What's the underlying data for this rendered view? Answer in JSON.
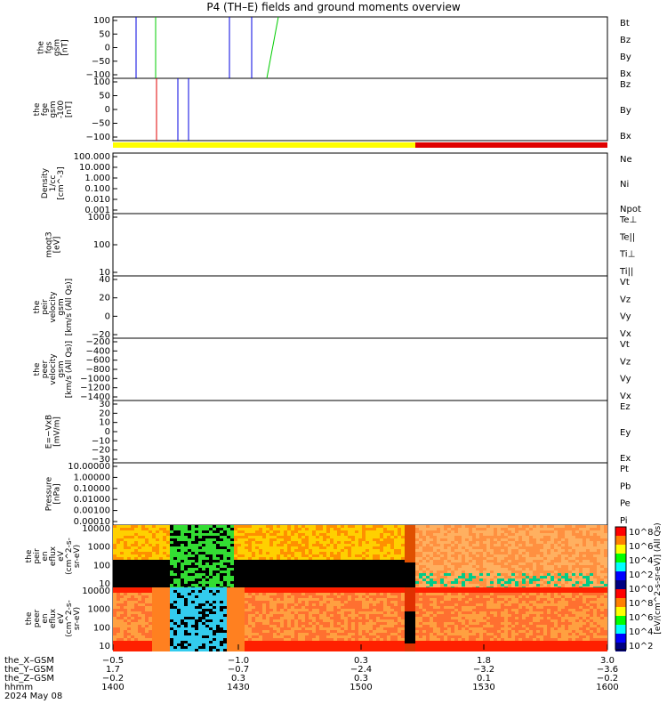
{
  "title": "P4 (TH–E) fields and ground moments overview",
  "colors": {
    "black": "#000000",
    "red": "#e00000",
    "green": "#00cc00",
    "blue": "#0000e0",
    "yellow": "#ffff00"
  },
  "chart_data": [
    {
      "id": "fgs",
      "type": "line",
      "ylabel": [
        "the",
        "fgs",
        "gsm",
        "[nT]"
      ],
      "yticks": [
        "100",
        "50",
        "0",
        "−50",
        "−100"
      ],
      "ylim": [
        -100,
        100
      ],
      "legend": [
        "Bt",
        "Bz",
        "By",
        "Bx"
      ],
      "legend_colors": [
        "#000000",
        "#e00000",
        "#00cc00",
        "#0000e0"
      ]
    },
    {
      "id": "fge",
      "type": "line",
      "ylabel": [
        "the",
        "fge",
        "gsm",
        "-100",
        "[nT]"
      ],
      "yticks": [
        "100",
        "50",
        "0",
        "−50",
        "−100"
      ],
      "ylim": [
        -120,
        120
      ],
      "legend": [
        "Bz",
        "By",
        "Bx"
      ],
      "legend_colors": [
        "#e00000",
        "#00cc00",
        "#0000e0"
      ]
    },
    {
      "id": "density",
      "type": "line",
      "ylabel": [
        "Density",
        "1/cc",
        "[cm^-3]"
      ],
      "yticks": [
        "100.000",
        "10.000",
        "1.000",
        "0.100",
        "0.010",
        "0.001"
      ],
      "scale": "log",
      "legend": [
        "Ne",
        "Ni",
        "Npot"
      ],
      "legend_colors": [
        "#e00000",
        "#000000",
        "#0000e0"
      ]
    },
    {
      "id": "temperature",
      "type": "line",
      "ylabel": [
        "moqt3",
        "[eV]"
      ],
      "yticks": [
        "1000",
        "100",
        "10"
      ],
      "scale": "log",
      "legend": [
        "Te⊥",
        "Te||",
        "Ti⊥",
        "Ti||"
      ],
      "legend_colors": [
        "#e00000",
        "#000000",
        "#0000e0",
        "#00cc00"
      ]
    },
    {
      "id": "peir_vel",
      "type": "line",
      "ylabel": [
        "the",
        "peir",
        "velocity",
        "gsm",
        "[km/s (All Qs)]"
      ],
      "yticks": [
        "40",
        "20",
        "0",
        "−20"
      ],
      "ylim": [
        -30,
        45
      ],
      "legend": [
        "Vt",
        "Vz",
        "Vy",
        "Vx"
      ],
      "legend_colors": [
        "#000000",
        "#e00000",
        "#00cc00",
        "#0000e0"
      ]
    },
    {
      "id": "peer_vel",
      "type": "line",
      "ylabel": [
        "the",
        "peer",
        "velocity",
        "gsm",
        "[km/s (All Qs)]"
      ],
      "yticks": [
        "−200",
        "−400",
        "−600",
        "−800",
        "−1000",
        "−1200",
        "−1400"
      ],
      "ylim": [
        -1400,
        -100
      ],
      "legend": [
        "Vt",
        "Vz",
        "Vy",
        "Vx"
      ],
      "legend_colors": [
        "#000000",
        "#e00000",
        "#00cc00",
        "#0000e0"
      ]
    },
    {
      "id": "efield",
      "type": "line",
      "ylabel": [
        "E=−VxB",
        "[mV/m]"
      ],
      "yticks": [
        "30",
        "20",
        "10",
        "0",
        "−10",
        "−20",
        "−30"
      ],
      "ylim": [
        -30,
        30
      ],
      "legend": [
        "Ez",
        "Ey",
        "Ex"
      ],
      "legend_colors": [
        "#e00000",
        "#00cc00",
        "#0000e0"
      ]
    },
    {
      "id": "pressure",
      "type": "line",
      "ylabel": [
        "Pressure",
        "[nPa]"
      ],
      "yticks": [
        "10.00000",
        "1.00000",
        "0.10000",
        "0.01000",
        "0.00100",
        "0.00010"
      ],
      "scale": "log",
      "legend": [
        "Pt",
        "Pb",
        "Pe",
        "Pi"
      ],
      "legend_colors": [
        "#000000",
        "#e00000",
        "#00cc00",
        "#0000e0"
      ]
    },
    {
      "id": "peir_spec",
      "type": "heatmap",
      "ylabel": [
        "the",
        "peir",
        "en",
        "eflux",
        "eV",
        "(cm^2-s-",
        "sr-eV)"
      ],
      "yticks": [
        "10000",
        "1000",
        "100",
        "10"
      ]
    },
    {
      "id": "peer_spec",
      "type": "heatmap",
      "ylabel": [
        "the",
        "peer",
        "en",
        "eflux",
        "eV",
        "(cm^2-s-",
        "sr-eV)"
      ],
      "yticks": [
        "10000",
        "1000",
        "100",
        "10"
      ]
    }
  ],
  "colorbar": {
    "ticks": [
      "10^8",
      "10^6",
      "10^4",
      "10^2",
      "10^0",
      "10^8",
      "10^6",
      "10^4",
      "10^2"
    ],
    "label": "[eV/(cm^2-s-sr-eV)] (All Qs)"
  },
  "xaxis": {
    "rows": [
      {
        "name": "the_X–GSM",
        "values": [
          "−0.5",
          "−1.0",
          "0.3",
          "1.8",
          "3.0"
        ]
      },
      {
        "name": "the_Y–GSM",
        "values": [
          "1.7",
          "−0.7",
          "−2.4",
          "−3.2",
          "−3.6"
        ]
      },
      {
        "name": "the_Z–GSM",
        "values": [
          "−0.2",
          "0.3",
          "0.3",
          "0.1",
          "−0.2"
        ]
      },
      {
        "name": "hhmm",
        "values": [
          "1400",
          "1430",
          "1500",
          "1530",
          "1600"
        ]
      }
    ],
    "date": "2024 May 08"
  }
}
